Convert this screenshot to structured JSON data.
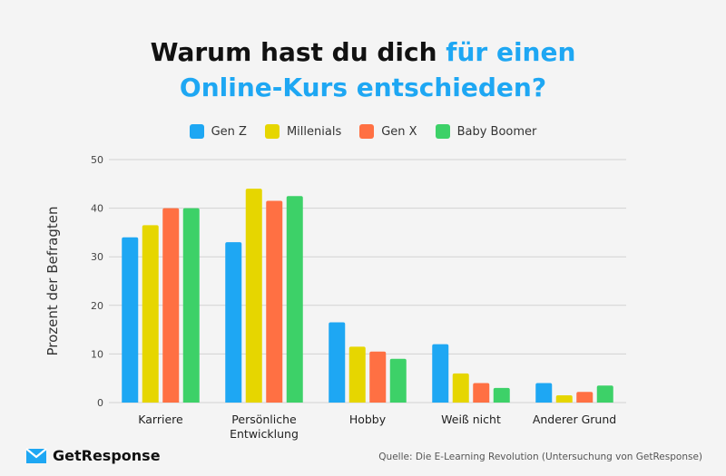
{
  "title": {
    "part1": "Warum hast du dich ",
    "part2": "für einen",
    "part3": "Online-Kurs entschieden?"
  },
  "brand": {
    "name": "GetResponse",
    "icon": "envelope-check-icon",
    "color": "#1ea7f3"
  },
  "source": "Quelle: Die E-Learning Revolution (Untersuchung von GetResponse)",
  "chart_data": {
    "type": "bar",
    "title": "Warum hast du dich für einen Online-Kurs entschieden?",
    "xlabel": "",
    "ylabel": "Prozent der Befragten",
    "ylim": [
      0,
      50
    ],
    "yticks": [
      "0",
      "10",
      "20",
      "30",
      "40",
      "50"
    ],
    "grid": true,
    "legend_position": "top-center",
    "categories": [
      "Karriere",
      "Persönliche\nEntwicklung",
      "Hobby",
      "Weiß nicht",
      "Anderer Grund"
    ],
    "series": [
      {
        "name": "Gen Z",
        "color": "#1ea7f3",
        "values": [
          34,
          33,
          16.5,
          12,
          4
        ]
      },
      {
        "name": "Millenials",
        "color": "#e6d600",
        "values": [
          36.5,
          44,
          11.5,
          6,
          1.5
        ]
      },
      {
        "name": "Gen X",
        "color": "#ff7043",
        "values": [
          40,
          41.5,
          10.5,
          4,
          2.2
        ]
      },
      {
        "name": "Baby Boomer",
        "color": "#3dd168",
        "values": [
          40,
          42.5,
          9,
          3,
          3.5
        ]
      }
    ]
  }
}
